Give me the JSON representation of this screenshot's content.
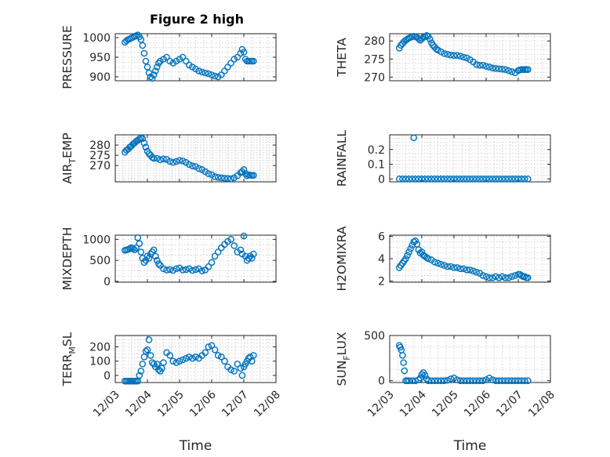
{
  "figure": {
    "title": "Figure 2 high",
    "marker_color": "#0072BD",
    "xlabel": "Time",
    "x_ticks": [
      "12/03",
      "12/04",
      "12/05",
      "12/06",
      "12/07",
      "12/08"
    ]
  },
  "chart_data": [
    {
      "type": "scatter",
      "ylabel": "PRESSURE",
      "ylabel_main": "PRESSURE",
      "ylabel_sub": "",
      "ylabel_tail": "",
      "title": "Figure 2 high",
      "xlim": [
        3,
        8
      ],
      "ylim": [
        890,
        1010
      ],
      "yticks": [
        900,
        950,
        1000
      ],
      "ytick_labels": [
        "900",
        "950",
        "1000"
      ],
      "x": [
        3.3,
        3.35,
        3.4,
        3.45,
        3.5,
        3.55,
        3.6,
        3.65,
        3.7,
        3.75,
        3.8,
        3.85,
        3.9,
        3.95,
        4.0,
        4.05,
        4.1,
        4.15,
        4.2,
        4.25,
        4.3,
        4.35,
        4.4,
        4.5,
        4.6,
        4.7,
        4.8,
        4.9,
        5.0,
        5.1,
        5.2,
        5.3,
        5.4,
        5.5,
        5.6,
        5.7,
        5.8,
        5.9,
        6.0,
        6.1,
        6.2,
        6.3,
        6.4,
        6.5,
        6.6,
        6.7,
        6.8,
        6.9,
        6.95,
        7.0,
        7.05,
        7.1,
        7.15,
        7.2,
        7.25,
        7.3
      ],
      "y": [
        988,
        992,
        995,
        997,
        999,
        1001,
        1003,
        1005,
        1007,
        1002,
        995,
        980,
        960,
        940,
        925,
        910,
        900,
        896,
        905,
        915,
        925,
        935,
        940,
        945,
        950,
        940,
        935,
        940,
        945,
        950,
        940,
        930,
        925,
        920,
        915,
        912,
        910,
        908,
        905,
        902,
        900,
        905,
        915,
        925,
        935,
        945,
        950,
        960,
        970,
        963,
        945,
        940,
        940,
        940,
        940,
        940
      ]
    },
    {
      "type": "scatter",
      "ylabel": "THETA",
      "ylabel_main": "THETA",
      "ylabel_sub": "",
      "ylabel_tail": "",
      "xlim": [
        3,
        8
      ],
      "ylim": [
        269,
        282
      ],
      "yticks": [
        270,
        275,
        280
      ],
      "ytick_labels": [
        "270",
        "275",
        "280"
      ],
      "x": [
        3.3,
        3.35,
        3.4,
        3.45,
        3.5,
        3.55,
        3.6,
        3.65,
        3.7,
        3.75,
        3.8,
        3.85,
        3.9,
        3.95,
        4.0,
        4.05,
        4.1,
        4.15,
        4.2,
        4.25,
        4.3,
        4.35,
        4.4,
        4.45,
        4.5,
        4.6,
        4.7,
        4.8,
        4.9,
        5.0,
        5.1,
        5.2,
        5.3,
        5.4,
        5.5,
        5.6,
        5.7,
        5.8,
        5.9,
        6.0,
        6.1,
        6.2,
        6.3,
        6.4,
        6.5,
        6.6,
        6.7,
        6.8,
        6.9,
        7.0,
        7.05,
        7.1,
        7.15,
        7.2,
        7.25,
        7.3
      ],
      "y": [
        278,
        278.8,
        279.3,
        279.8,
        280.2,
        280.5,
        280.8,
        281,
        281.2,
        281.3,
        281.2,
        281,
        280.6,
        280.2,
        280.6,
        281,
        281.2,
        281.5,
        281.3,
        280.5,
        279.5,
        278.8,
        278.3,
        277.8,
        277.5,
        277,
        276.5,
        276.3,
        276.1,
        276,
        276,
        275.8,
        275.5,
        275.3,
        274.8,
        274.2,
        273.5,
        273.3,
        273.3,
        273,
        272.8,
        272.5,
        272.4,
        272.3,
        272.2,
        272.1,
        271.8,
        271.5,
        271.2,
        271.8,
        272,
        272.1,
        272.1,
        272.1,
        272.1,
        272.1
      ]
    },
    {
      "type": "scatter",
      "ylabel": "AIR_TEMP",
      "ylabel_main": "AIR",
      "ylabel_sub": "T",
      "ylabel_tail": "EMP",
      "xlim": [
        3,
        8
      ],
      "ylim": [
        262,
        285
      ],
      "yticks": [
        270,
        275,
        280
      ],
      "ytick_labels": [
        "270",
        "275",
        "280"
      ],
      "x": [
        3.3,
        3.35,
        3.4,
        3.45,
        3.5,
        3.55,
        3.6,
        3.65,
        3.7,
        3.75,
        3.8,
        3.85,
        3.9,
        3.95,
        4.0,
        4.05,
        4.1,
        4.15,
        4.2,
        4.3,
        4.4,
        4.5,
        4.6,
        4.7,
        4.8,
        4.9,
        5.0,
        5.1,
        5.2,
        5.3,
        5.4,
        5.5,
        5.6,
        5.7,
        5.8,
        5.9,
        6.0,
        6.1,
        6.2,
        6.3,
        6.4,
        6.5,
        6.6,
        6.7,
        6.8,
        6.9,
        6.95,
        7.0,
        7.05,
        7.1,
        7.15,
        7.2,
        7.25,
        7.3
      ],
      "y": [
        276.5,
        277.5,
        278,
        279,
        279.5,
        280.5,
        281,
        281.8,
        282.3,
        283,
        283.5,
        283.2,
        281,
        279,
        277,
        275.8,
        275,
        274,
        273.5,
        273.5,
        272.8,
        273.2,
        273,
        272,
        271.5,
        272,
        272.5,
        272.2,
        271.5,
        270.5,
        269.8,
        269.5,
        268.5,
        268,
        267,
        266,
        265.5,
        264.5,
        264.2,
        264,
        263.8,
        263.7,
        263.5,
        264,
        265,
        266.5,
        267,
        268,
        266,
        265,
        265.5,
        265.3,
        265.2,
        265.2
      ]
    },
    {
      "type": "scatter",
      "ylabel": "RAINFALL",
      "ylabel_main": "RAINFALL",
      "ylabel_sub": "",
      "ylabel_tail": "",
      "xlim": [
        3,
        8
      ],
      "ylim": [
        -0.02,
        0.3
      ],
      "yticks": [
        0,
        0.1,
        0.2
      ],
      "ytick_labels": [
        "0",
        "0.1",
        "0.2"
      ],
      "x": [
        3.3,
        3.4,
        3.5,
        3.6,
        3.7,
        3.8,
        3.9,
        4.0,
        4.1,
        4.2,
        4.3,
        4.4,
        4.5,
        4.6,
        4.7,
        4.8,
        4.9,
        5.0,
        5.1,
        5.2,
        5.3,
        5.4,
        5.5,
        5.6,
        5.7,
        5.8,
        5.9,
        6.0,
        6.1,
        6.2,
        6.3,
        6.4,
        6.5,
        6.6,
        6.7,
        6.8,
        6.9,
        7.0,
        7.1,
        7.2,
        7.3,
        3.75
      ],
      "y": [
        0,
        0,
        0,
        0,
        0,
        0,
        0,
        0,
        0,
        0,
        0,
        0,
        0,
        0,
        0,
        0,
        0,
        0,
        0,
        0,
        0,
        0,
        0,
        0,
        0,
        0,
        0,
        0,
        0,
        0,
        0,
        0,
        0,
        0,
        0,
        0,
        0,
        0,
        0,
        0,
        0,
        0.28
      ]
    },
    {
      "type": "scatter",
      "ylabel": "MIXDEPTH",
      "ylabel_main": "MIXDEPTH",
      "ylabel_sub": "",
      "ylabel_tail": "",
      "xlim": [
        3,
        8
      ],
      "ylim": [
        -20,
        1100
      ],
      "yticks": [
        0,
        500,
        1000
      ],
      "ytick_labels": [
        "0",
        "500",
        "1000"
      ],
      "x": [
        3.3,
        3.35,
        3.4,
        3.45,
        3.5,
        3.55,
        3.6,
        3.65,
        3.7,
        3.75,
        3.8,
        3.85,
        3.9,
        3.95,
        4.0,
        4.05,
        4.1,
        4.15,
        4.2,
        4.25,
        4.3,
        4.35,
        4.4,
        4.5,
        4.6,
        4.7,
        4.8,
        4.9,
        5.0,
        5.1,
        5.2,
        5.3,
        5.4,
        5.5,
        5.6,
        5.7,
        5.8,
        5.9,
        6.0,
        6.1,
        6.2,
        6.3,
        6.4,
        6.5,
        6.6,
        6.7,
        6.8,
        6.9,
        6.95,
        7.0,
        7.05,
        7.1,
        7.15,
        7.2,
        7.25,
        7.3
      ],
      "y": [
        740,
        750,
        760,
        780,
        800,
        780,
        750,
        800,
        1040,
        900,
        700,
        550,
        450,
        500,
        600,
        550,
        650,
        700,
        750,
        600,
        500,
        420,
        380,
        300,
        270,
        280,
        260,
        300,
        320,
        270,
        280,
        300,
        260,
        280,
        300,
        250,
        270,
        350,
        450,
        600,
        700,
        800,
        880,
        950,
        1000,
        850,
        700,
        750,
        650,
        1080,
        600,
        500,
        550,
        600,
        550,
        650
      ]
    },
    {
      "type": "scatter",
      "ylabel": "H2OMIXRA",
      "ylabel_main": "H2OMIXRA",
      "ylabel_sub": "",
      "ylabel_tail": "",
      "xlim": [
        3,
        8
      ],
      "ylim": [
        1.9,
        6.1
      ],
      "yticks": [
        2,
        4,
        6
      ],
      "ytick_labels": [
        "2",
        "4",
        "6"
      ],
      "x": [
        3.3,
        3.35,
        3.4,
        3.45,
        3.5,
        3.55,
        3.6,
        3.65,
        3.7,
        3.75,
        3.8,
        3.85,
        3.9,
        3.95,
        4.0,
        4.05,
        4.1,
        4.15,
        4.2,
        4.3,
        4.4,
        4.5,
        4.6,
        4.7,
        4.8,
        4.9,
        5.0,
        5.1,
        5.2,
        5.3,
        5.4,
        5.5,
        5.6,
        5.7,
        5.8,
        5.9,
        6.0,
        6.1,
        6.2,
        6.3,
        6.4,
        6.5,
        6.6,
        6.7,
        6.8,
        6.9,
        7.0,
        7.05,
        7.1,
        7.15,
        7.2,
        7.25,
        7.3
      ],
      "y": [
        3.2,
        3.4,
        3.6,
        3.8,
        4.0,
        4.3,
        4.6,
        4.9,
        5.2,
        5.5,
        5.6,
        5.3,
        4.8,
        4.5,
        4.6,
        4.3,
        4.2,
        4.1,
        4.0,
        3.9,
        3.7,
        3.6,
        3.5,
        3.4,
        3.3,
        3.3,
        3.2,
        3.2,
        3.1,
        3.1,
        3.0,
        3.0,
        2.9,
        2.8,
        2.7,
        2.5,
        2.4,
        2.3,
        2.3,
        2.4,
        2.3,
        2.4,
        2.3,
        2.3,
        2.4,
        2.5,
        2.6,
        2.6,
        2.5,
        2.4,
        2.4,
        2.3,
        2.3
      ]
    },
    {
      "type": "scatter",
      "ylabel": "TERR_MSL",
      "ylabel_main": "TERR",
      "ylabel_sub": "M",
      "ylabel_tail": "SL",
      "xlim": [
        3,
        8
      ],
      "ylim": [
        -50,
        280
      ],
      "yticks": [
        0,
        100,
        200
      ],
      "ytick_labels": [
        "0",
        "100",
        "200"
      ],
      "x": [
        3.3,
        3.35,
        3.4,
        3.45,
        3.5,
        3.55,
        3.6,
        3.65,
        3.7,
        3.75,
        3.8,
        3.85,
        3.9,
        3.95,
        4.0,
        4.05,
        4.1,
        4.15,
        4.2,
        4.25,
        4.3,
        4.35,
        4.4,
        4.45,
        4.5,
        4.6,
        4.7,
        4.8,
        4.9,
        5.0,
        5.1,
        5.2,
        5.3,
        5.4,
        5.5,
        5.6,
        5.7,
        5.8,
        5.9,
        6.0,
        6.1,
        6.2,
        6.3,
        6.4,
        6.5,
        6.6,
        6.7,
        6.8,
        6.9,
        6.95,
        7.0,
        7.05,
        7.1,
        7.15,
        7.2,
        7.25,
        7.3
      ],
      "y": [
        -40,
        -40,
        -40,
        -40,
        -40,
        -40,
        -40,
        -40,
        -40,
        0,
        30,
        80,
        130,
        170,
        180,
        250,
        140,
        90,
        80,
        60,
        80,
        40,
        30,
        50,
        90,
        160,
        140,
        100,
        90,
        100,
        110,
        120,
        130,
        120,
        130,
        120,
        140,
        160,
        200,
        210,
        180,
        140,
        130,
        100,
        60,
        40,
        30,
        80,
        50,
        0,
        60,
        80,
        100,
        120,
        130,
        100,
        140
      ]
    },
    {
      "type": "scatter",
      "ylabel": "SUN_FLUX",
      "ylabel_main": "SUN",
      "ylabel_sub": "F",
      "ylabel_tail": "LUX",
      "xlim": [
        3,
        8
      ],
      "ylim": [
        -20,
        500
      ],
      "yticks": [
        0,
        500
      ],
      "ytick_labels": [
        "0",
        "500"
      ],
      "x": [
        3.3,
        3.33,
        3.36,
        3.4,
        3.43,
        3.46,
        3.5,
        3.55,
        3.6,
        3.7,
        3.8,
        3.9,
        3.95,
        4.0,
        4.05,
        4.1,
        4.15,
        4.2,
        4.3,
        4.4,
        4.5,
        4.6,
        4.7,
        4.8,
        4.9,
        5.0,
        5.1,
        5.2,
        5.3,
        5.4,
        5.5,
        5.6,
        5.7,
        5.8,
        5.9,
        6.0,
        6.1,
        6.2,
        6.3,
        6.4,
        6.5,
        6.6,
        6.7,
        6.8,
        6.9,
        7.0,
        7.1,
        7.2,
        7.3
      ],
      "y": [
        390,
        370,
        340,
        280,
        200,
        110,
        0,
        0,
        0,
        0,
        0,
        10,
        30,
        70,
        90,
        60,
        20,
        0,
        0,
        0,
        0,
        0,
        0,
        5,
        20,
        30,
        10,
        0,
        0,
        0,
        0,
        0,
        0,
        0,
        0,
        10,
        30,
        10,
        0,
        0,
        0,
        0,
        0,
        0,
        0,
        0,
        0,
        0,
        0
      ]
    }
  ]
}
